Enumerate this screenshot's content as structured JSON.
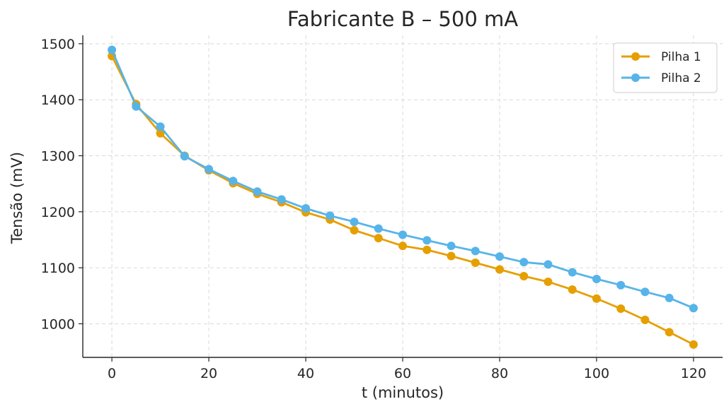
{
  "chart_data": {
    "type": "line",
    "title": "Fabricante B – 500 mA",
    "xlabel": "t (minutos)",
    "ylabel": "Tensão (mV)",
    "xlim": [
      -6,
      126
    ],
    "ylim": [
      940,
      1515
    ],
    "xticks": [
      0,
      20,
      40,
      60,
      80,
      100,
      120
    ],
    "yticks": [
      1000,
      1100,
      1200,
      1300,
      1400,
      1500
    ],
    "grid": true,
    "legend_position": "top-right",
    "x": [
      0,
      5,
      10,
      15,
      20,
      25,
      30,
      35,
      40,
      45,
      50,
      55,
      60,
      65,
      70,
      75,
      80,
      85,
      90,
      95,
      100,
      105,
      110,
      115,
      120
    ],
    "series": [
      {
        "name": "Pilha 1",
        "color": "#E69F00",
        "values": [
          1478,
          1392,
          1340,
          1300,
          1274,
          1251,
          1232,
          1217,
          1199,
          1186,
          1167,
          1153,
          1139,
          1132,
          1121,
          1109,
          1097,
          1085,
          1075,
          1061,
          1045,
          1027,
          1007,
          985,
          963
        ]
      },
      {
        "name": "Pilha 2",
        "color": "#56B4E9",
        "values": [
          1489,
          1388,
          1352,
          1299,
          1276,
          1255,
          1236,
          1222,
          1206,
          1193,
          1182,
          1170,
          1159,
          1149,
          1139,
          1130,
          1120,
          1110,
          1106,
          1092,
          1080,
          1069,
          1057,
          1046,
          1028
        ]
      }
    ]
  }
}
